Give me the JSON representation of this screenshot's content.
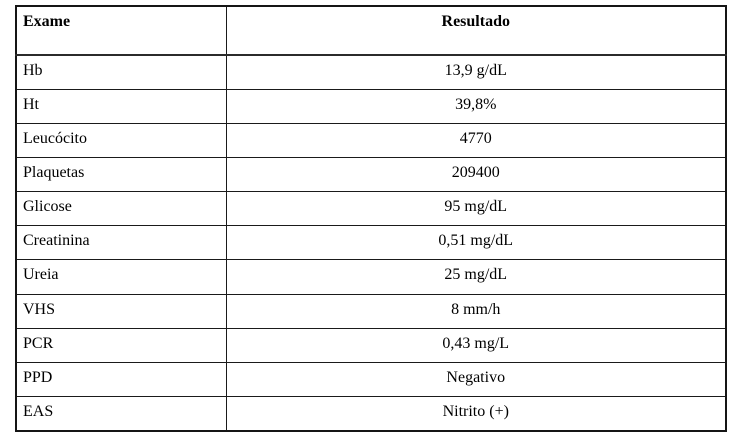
{
  "table": {
    "title_semantic": "exam-results-table",
    "headers": {
      "exam": "Exame",
      "result": "Resultado"
    },
    "rows": [
      {
        "exam": "Hb",
        "result": "13,9 g/dL"
      },
      {
        "exam": "Ht",
        "result": "39,8%"
      },
      {
        "exam": "Leucócito",
        "result": "4770"
      },
      {
        "exam": "Plaquetas",
        "result": "209400"
      },
      {
        "exam": "Glicose",
        "result": "95 mg/dL"
      },
      {
        "exam": "Creatinina",
        "result": "0,51 mg/dL"
      },
      {
        "exam": "Ureia",
        "result": "25 mg/dL"
      },
      {
        "exam": "VHS",
        "result": "8 mm/h"
      },
      {
        "exam": "PCR",
        "result": "0,43 mg/L"
      },
      {
        "exam": "PPD",
        "result": "Negativo"
      },
      {
        "exam": "EAS",
        "result": "Nitrito (+)"
      }
    ],
    "colors": {
      "border": "#1a1a1a",
      "text": "#000000",
      "background": "#ffffff"
    }
  }
}
